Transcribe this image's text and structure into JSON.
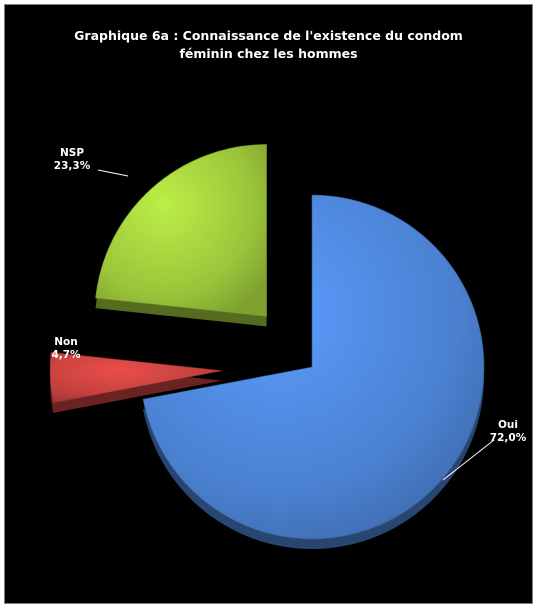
{
  "chart_data": {
    "type": "pie",
    "title_lines": [
      "Graphique 6a : Connaissance de l'existence du condom",
      "féminin chez les hommes"
    ],
    "categories": [
      "Oui",
      "Non",
      "NSP"
    ],
    "values": [
      72.0,
      4.7,
      23.3
    ],
    "value_labels": [
      "72,0%",
      "4,7%",
      "23,3%"
    ],
    "colors": [
      "#4a80cf",
      "#c0403d",
      "#9ac43a"
    ],
    "label_colors": [
      "#ffffff",
      "#ffffff",
      "#ffffff"
    ],
    "exploded": true,
    "style": "3d"
  }
}
